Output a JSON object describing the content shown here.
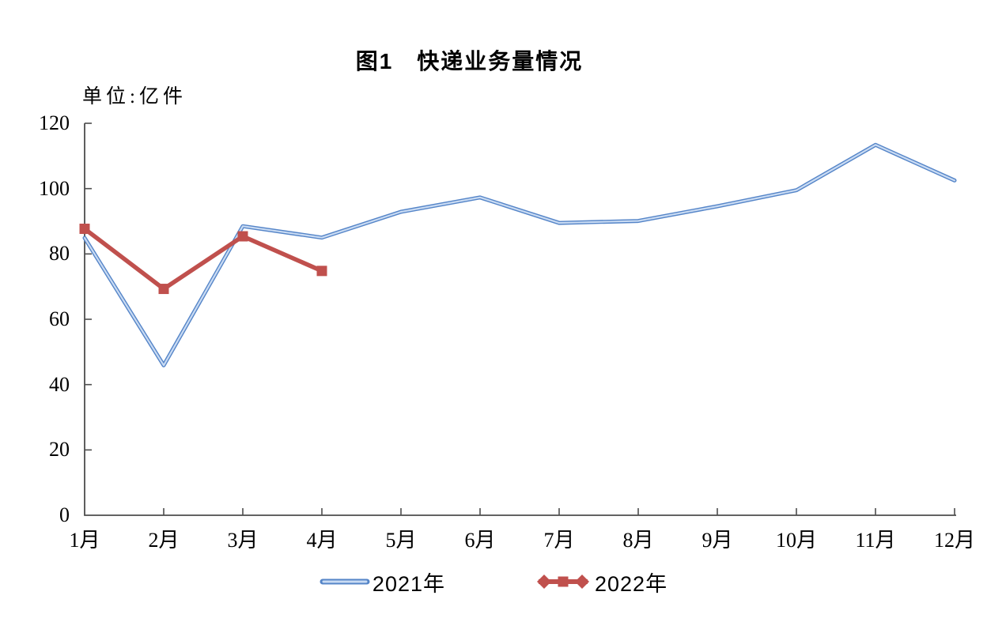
{
  "title": "图1　快递业务量情况",
  "unit_label": "单位:亿件",
  "colors": {
    "axis": "#4d4d4d",
    "text": "#000000",
    "background": "#ffffff"
  },
  "chart_data": {
    "type": "line",
    "title": "图1　快递业务量情况",
    "unit": "单位:亿件",
    "categories": [
      "1月",
      "2月",
      "3月",
      "4月",
      "5月",
      "6月",
      "7月",
      "8月",
      "9月",
      "10月",
      "11月",
      "12月"
    ],
    "series": [
      {
        "name": "2021年",
        "color": "#5585C8",
        "highlight": "#C9DBF3",
        "marker": "none",
        "values": [
          84.9,
          45.9,
          88.5,
          85.0,
          92.9,
          97.3,
          89.5,
          90.1,
          94.6,
          99.5,
          113.4,
          102.5
        ]
      },
      {
        "name": "2022年",
        "color": "#C0504D",
        "marker": "square",
        "values": [
          87.7,
          69.3,
          85.4,
          74.8
        ]
      }
    ],
    "ylim": [
      0,
      120
    ],
    "y_ticks": [
      0,
      20,
      40,
      60,
      80,
      100,
      120
    ],
    "grid": false,
    "legend_position": "bottom"
  }
}
